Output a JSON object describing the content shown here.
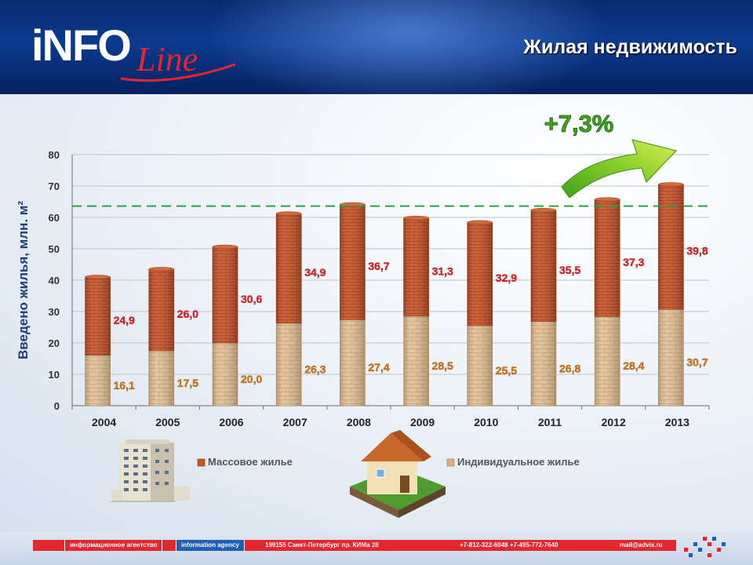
{
  "header": {
    "logo_main": "iNFO",
    "logo_script": "Line",
    "title": "Жилая недвижимость"
  },
  "chart_data": {
    "type": "bar",
    "stacked": true,
    "categories": [
      "2004",
      "2005",
      "2006",
      "2007",
      "2008",
      "2009",
      "2010",
      "2011",
      "2012",
      "2013"
    ],
    "series": [
      {
        "name": "Индивидуальное жилье",
        "values": [
          16.1,
          17.5,
          20.0,
          26.3,
          27.4,
          28.5,
          25.5,
          26.8,
          28.4,
          30.7
        ],
        "labels": [
          "16,1",
          "17,5",
          "20,0",
          "26,3",
          "27,4",
          "28,5",
          "25,5",
          "26,8",
          "28,4",
          "30,7"
        ],
        "color": "#d9b07a",
        "label_color": "#e07a10"
      },
      {
        "name": "Массовое жилье",
        "values": [
          24.9,
          26.0,
          30.6,
          34.9,
          36.7,
          31.3,
          32.9,
          35.5,
          37.3,
          39.8
        ],
        "labels": [
          "24,9",
          "26,0",
          "30,6",
          "34,9",
          "36,7",
          "31,3",
          "32,9",
          "35,5",
          "37,3",
          "39,8"
        ],
        "color": "#c8552a",
        "label_color": "#e4262e"
      }
    ],
    "ylabel": "Введено жилья, млн. м²",
    "ylim": [
      0,
      80
    ],
    "yticks": [
      "0",
      "10",
      "20",
      "30",
      "40",
      "50",
      "60",
      "70",
      "80"
    ],
    "reference_line": 63.6,
    "annotation": "+7,3%",
    "grid": true,
    "legend_position": "bottom"
  },
  "footer": {
    "agency_ru": "информационное агентство",
    "agency_en": "information agency",
    "address": "199155 Санкт-Петербург пр. КИМа 28",
    "phones": "+7-812-322-6848 +7-495-772-7640",
    "email": "mail@advis.ru"
  }
}
